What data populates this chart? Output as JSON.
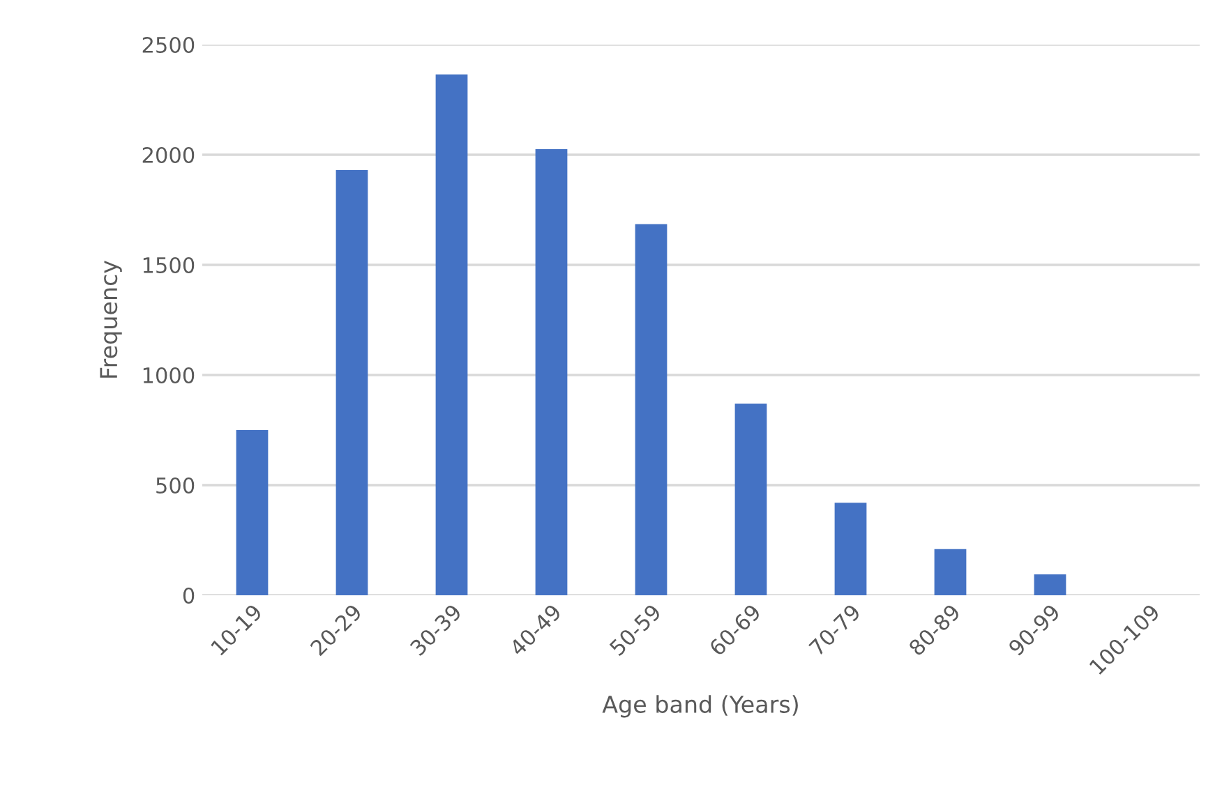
{
  "chart_data": {
    "type": "bar",
    "categories": [
      "10-19",
      "20-29",
      "30-39",
      "40-49",
      "50-59",
      "60-69",
      "70-79",
      "80-89",
      "90-99",
      "100-109"
    ],
    "values": [
      750,
      1930,
      2365,
      2025,
      1685,
      870,
      420,
      210,
      95,
      0
    ],
    "color": "#4472c4",
    "xlabel": "Age band (Years)",
    "ylabel": "Frequency",
    "ylim": [
      0,
      2500
    ],
    "yticks": [
      0,
      500,
      1000,
      1500,
      2000,
      2500
    ],
    "grid": "y"
  }
}
